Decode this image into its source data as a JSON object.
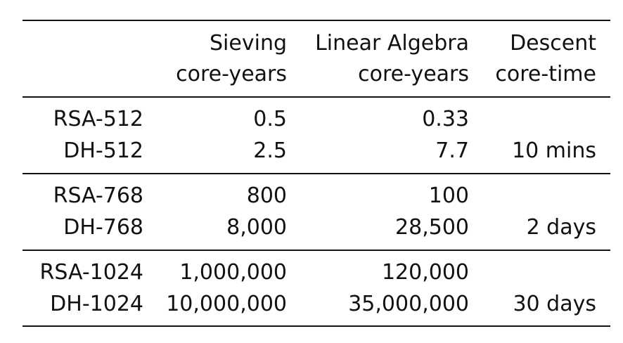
{
  "table": {
    "header": {
      "line1": [
        "",
        "Sieving",
        "Linear Algebra",
        "Descent"
      ],
      "line2": [
        "",
        "core-years",
        "core-years",
        "core-time"
      ]
    },
    "groups": [
      {
        "rows": [
          {
            "label": "RSA-512",
            "sieving": "0.5",
            "linear_algebra": "0.33",
            "descent": ""
          },
          {
            "label": "DH-512",
            "sieving": "2.5",
            "linear_algebra": "7.7",
            "descent": "10 mins"
          }
        ]
      },
      {
        "rows": [
          {
            "label": "RSA-768",
            "sieving": "800",
            "linear_algebra": "100",
            "descent": ""
          },
          {
            "label": "DH-768",
            "sieving": "8,000",
            "linear_algebra": "28,500",
            "descent": "2 days"
          }
        ]
      },
      {
        "rows": [
          {
            "label": "RSA-1024",
            "sieving": "1,000,000",
            "linear_algebra": "120,000",
            "descent": ""
          },
          {
            "label": "DH-1024",
            "sieving": "10,000,000",
            "linear_algebra": "35,000,000",
            "descent": "30 days"
          }
        ]
      }
    ]
  }
}
